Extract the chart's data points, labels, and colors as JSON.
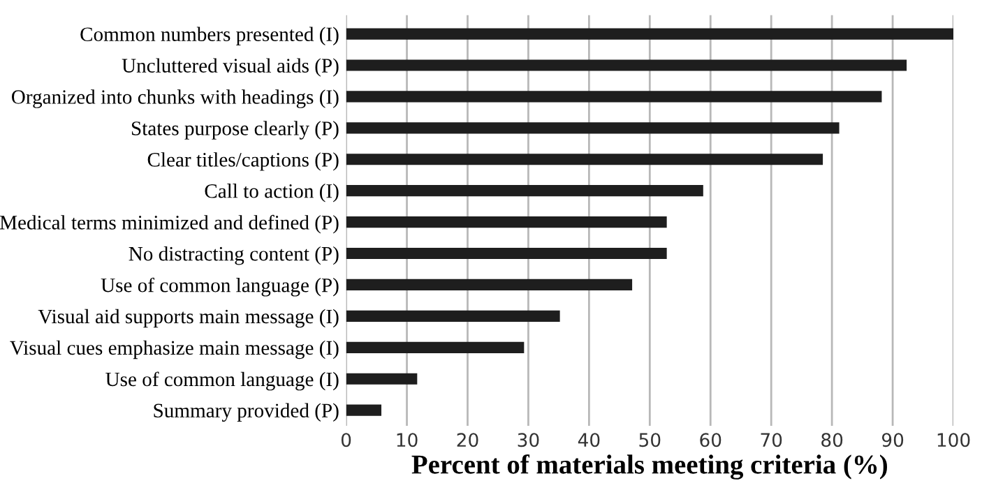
{
  "chart_data": {
    "type": "bar",
    "orientation": "horizontal",
    "xlabel": "Percent of materials meeting criteria (%)",
    "categories": [
      "Common numbers presented (I)",
      "Uncluttered visual aids (P)",
      "Organized into chunks with headings (I)",
      "States purpose clearly (P)",
      "Clear titles/captions (P)",
      "Call to action (I)",
      "Medical terms minimized and defined (P)",
      "No distracting content (P)",
      "Use of common language (P)",
      "Visual aid supports main message (I)",
      "Visual cues emphasize main message (I)",
      "Use of common language (I)",
      "Summary provided (P)"
    ],
    "values": [
      100,
      92.3,
      88.2,
      81.2,
      78.5,
      58.8,
      52.8,
      52.8,
      47.1,
      35.2,
      29.3,
      11.7,
      5.8
    ],
    "color": "#1e1e1e",
    "xlim": [
      0,
      100
    ],
    "xticks": [
      0,
      10,
      20,
      30,
      40,
      50,
      60,
      70,
      80,
      90,
      100
    ],
    "grid": "x"
  }
}
